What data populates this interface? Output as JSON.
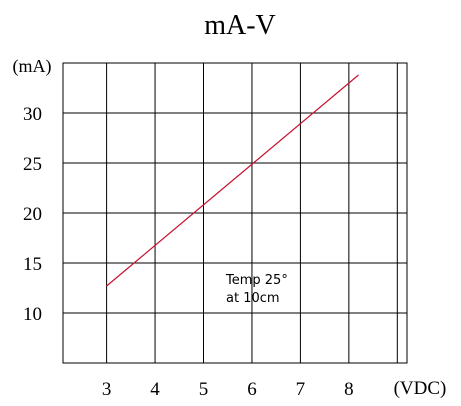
{
  "chart_data": {
    "type": "line",
    "title": "mA-V",
    "ylabel": "(mA)",
    "xlabel": "(VDC)",
    "xlim": [
      2.1,
      9.2
    ],
    "ylim": [
      5,
      35
    ],
    "x_ticks": [
      3,
      4,
      5,
      6,
      7,
      8
    ],
    "y_ticks": [
      10,
      15,
      20,
      25,
      30
    ],
    "grid": true,
    "series": [
      {
        "color": "#c8102e",
        "points": [
          [
            3,
            12.7
          ],
          [
            8.2,
            33.8
          ]
        ]
      }
    ],
    "annotation": {
      "line1": "Temp 25°",
      "line2": "at 10cm"
    }
  }
}
